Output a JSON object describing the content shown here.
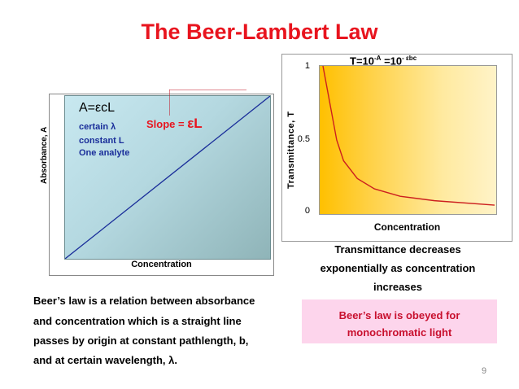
{
  "slide": {
    "title": "The Beer-Lambert Law",
    "page_number": "9"
  },
  "left_chart": {
    "ylabel": "Absorbance, A",
    "xlabel": "Concentration",
    "equation": "A=εcL",
    "conditions": [
      "certain λ",
      "constant L",
      "One analyte"
    ],
    "slope_label": "Slope = ",
    "slope_value": "εL",
    "line_color": "#1a2e9a"
  },
  "right_chart": {
    "equation_base": "T=10",
    "equation_exp1": "-A",
    "equation_mid": " =10",
    "equation_exp2": "- εbc",
    "ylabel": "Transmittance, T",
    "xlabel": "Concentration",
    "yticks": [
      "1",
      "0.5",
      "0"
    ],
    "curve_color": "#cc1f1f"
  },
  "chart_data": [
    {
      "type": "line",
      "title": "",
      "xlabel": "Concentration",
      "ylabel": "Absorbance, A",
      "series": [
        {
          "values": [
            [
              0,
              0
            ],
            [
              1,
              1
            ]
          ]
        }
      ]
    },
    {
      "type": "line",
      "title": "",
      "xlabel": "Concentration",
      "ylabel": "Transmittance, T",
      "ylim": [
        0,
        1
      ],
      "yticks": [
        0,
        0.5,
        1
      ],
      "series": [
        {
          "values": [
            [
              0.0,
              1.0
            ],
            [
              0.04,
              0.75
            ],
            [
              0.08,
              0.5
            ],
            [
              0.12,
              0.36
            ],
            [
              0.2,
              0.24
            ],
            [
              0.3,
              0.17
            ],
            [
              0.45,
              0.12
            ],
            [
              0.65,
              0.09
            ],
            [
              1.0,
              0.06
            ]
          ]
        }
      ]
    }
  ],
  "right_description": [
    "Transmittance decreases",
    "exponentially as concentration",
    "increases"
  ],
  "body_paragraph": [
    "Beer’s law is a relation between absorbance",
    "and concentration which is a straight line",
    "passes by origin at constant pathlength, b,",
    "and at certain wavelength, λ."
  ],
  "note_box": [
    "Beer’s law is obeyed for",
    "monochromatic light"
  ]
}
